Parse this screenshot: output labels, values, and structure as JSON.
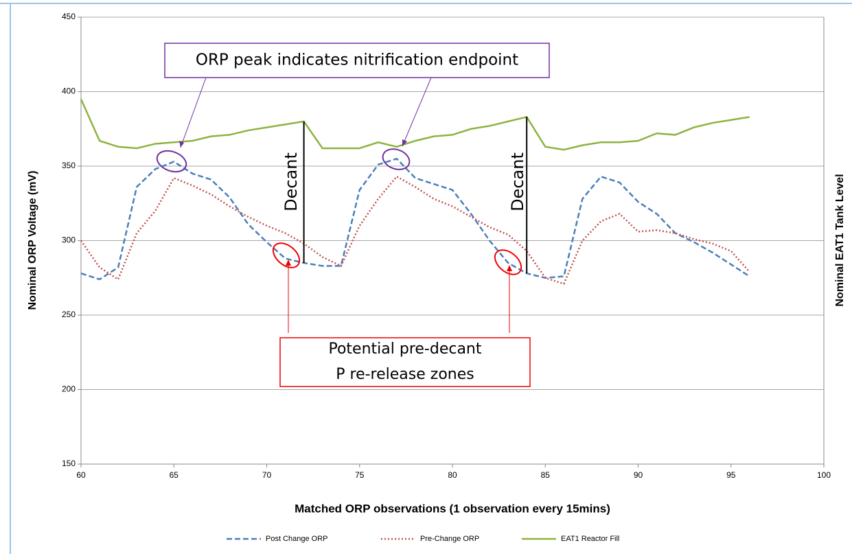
{
  "chart_data": {
    "type": "line",
    "y_label": "Nominal ORP Voltage (mV)",
    "y2_label": "Nominal EAT1 Tank Level",
    "x_label": "Matched ORP observations (1 observation every 15mins)",
    "x": [
      60,
      61,
      62,
      63,
      64,
      65,
      66,
      67,
      68,
      69,
      70,
      71,
      72,
      73,
      74,
      75,
      76,
      77,
      78,
      79,
      80,
      81,
      82,
      83,
      84,
      85,
      86,
      87,
      88,
      89,
      90,
      91,
      92,
      93,
      94,
      95,
      96
    ],
    "series": [
      {
        "name": "Post Change ORP",
        "color": "#4a7ebb",
        "dash": "dashed",
        "values": [
          278,
          274,
          282,
          336,
          348,
          353,
          345,
          341,
          329,
          311,
          299,
          288,
          285,
          283,
          283,
          334,
          351,
          355,
          342,
          338,
          334,
          318,
          300,
          285,
          278,
          275,
          276,
          328,
          343,
          339,
          326,
          318,
          305,
          299,
          292,
          284,
          276
        ]
      },
      {
        "name": "Pre-Change ORP",
        "color": "#c0504d",
        "dash": "dotted",
        "values": [
          300,
          282,
          274,
          305,
          320,
          342,
          337,
          331,
          323,
          316,
          310,
          305,
          298,
          289,
          283,
          310,
          328,
          343,
          336,
          328,
          323,
          316,
          309,
          304,
          293,
          275,
          271,
          300,
          313,
          318,
          306,
          307,
          305,
          301,
          298,
          293,
          279
        ]
      },
      {
        "name": "EAT1 Reactor Fill",
        "color": "#8db33f",
        "dash": "solid",
        "values": [
          395,
          367,
          363,
          362,
          365,
          366,
          367,
          370,
          371,
          374,
          376,
          378,
          380,
          362,
          362,
          362,
          366,
          363,
          367,
          370,
          371,
          375,
          377,
          380,
          383,
          363,
          361,
          364,
          366,
          366,
          367,
          372,
          371,
          376,
          379,
          381,
          383
        ]
      }
    ],
    "xlim": [
      60,
      100
    ],
    "xticks": [
      60,
      65,
      70,
      75,
      80,
      85,
      90,
      95,
      100
    ],
    "ylim": [
      150,
      450
    ],
    "yticks": [
      150,
      200,
      250,
      300,
      350,
      400,
      450
    ],
    "grid": true,
    "legend": "bottom",
    "annotations": [
      "ORP peak indicates nitrification endpoint",
      "Decant",
      "Decant",
      "Potential pre-decant",
      "P re-release zones"
    ]
  }
}
